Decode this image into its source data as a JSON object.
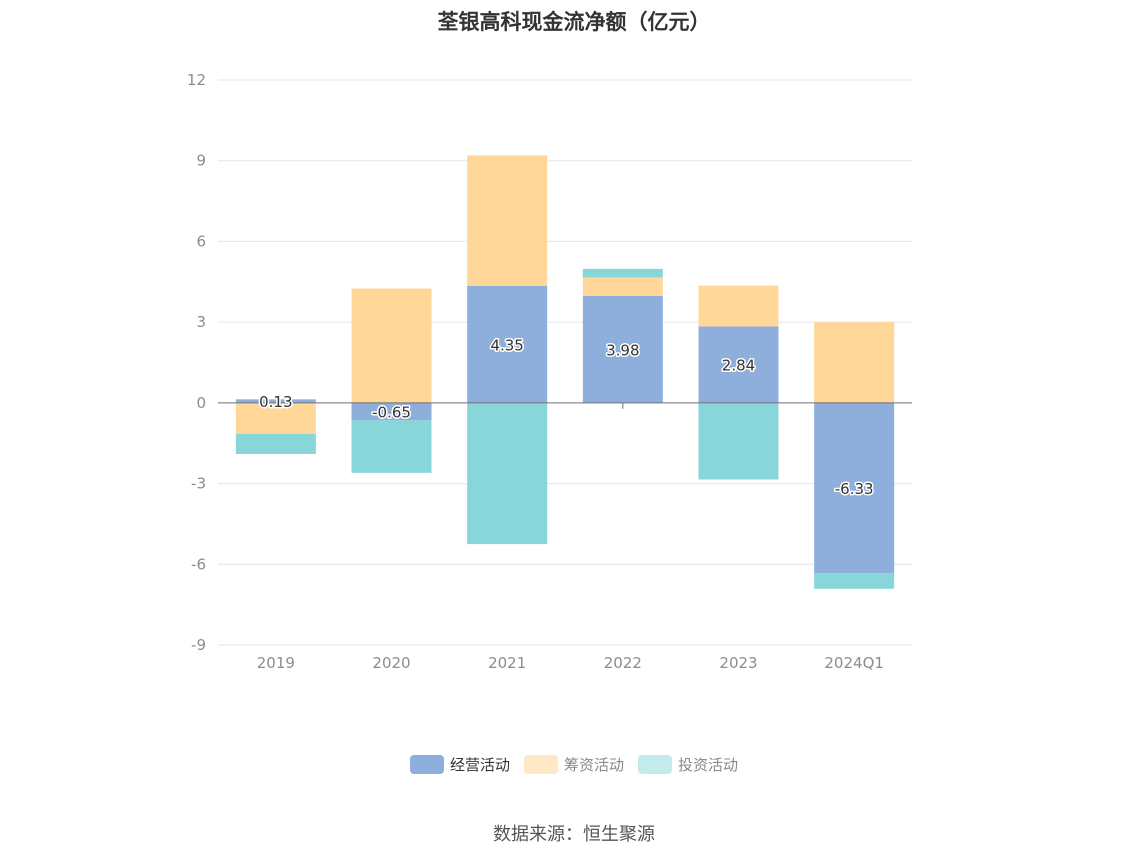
{
  "title": "荃银高科现金流净额（亿元）",
  "source": "数据来源：恒生聚源",
  "chart_data": {
    "type": "bar",
    "stacked": true,
    "categories": [
      "2019",
      "2020",
      "2021",
      "2022",
      "2023",
      "2024Q1"
    ],
    "series": [
      {
        "name": "经营活动",
        "color": "#8eaedb",
        "values": [
          0.13,
          -0.65,
          4.35,
          3.98,
          2.84,
          -6.33
        ],
        "labels": [
          "0.13",
          "-0.65",
          "4.35",
          "3.98",
          "2.84",
          "-6.33"
        ]
      },
      {
        "name": "筹资活动",
        "color": "#ffd899",
        "values": [
          -1.15,
          4.25,
          4.85,
          0.68,
          1.52,
          3.0
        ]
      },
      {
        "name": "投资活动",
        "color": "#88d6d9",
        "values": [
          -0.75,
          -1.95,
          -5.25,
          0.32,
          -2.85,
          -0.58
        ]
      }
    ],
    "legend_colors": [
      "#8eaedb",
      "#ffe8c6",
      "#c3ebec"
    ],
    "ylim": [
      -9,
      12
    ],
    "yticks": [
      12,
      9,
      6,
      3,
      0,
      -3,
      -6,
      -9
    ],
    "grid": true,
    "legend_position": "bottom"
  }
}
